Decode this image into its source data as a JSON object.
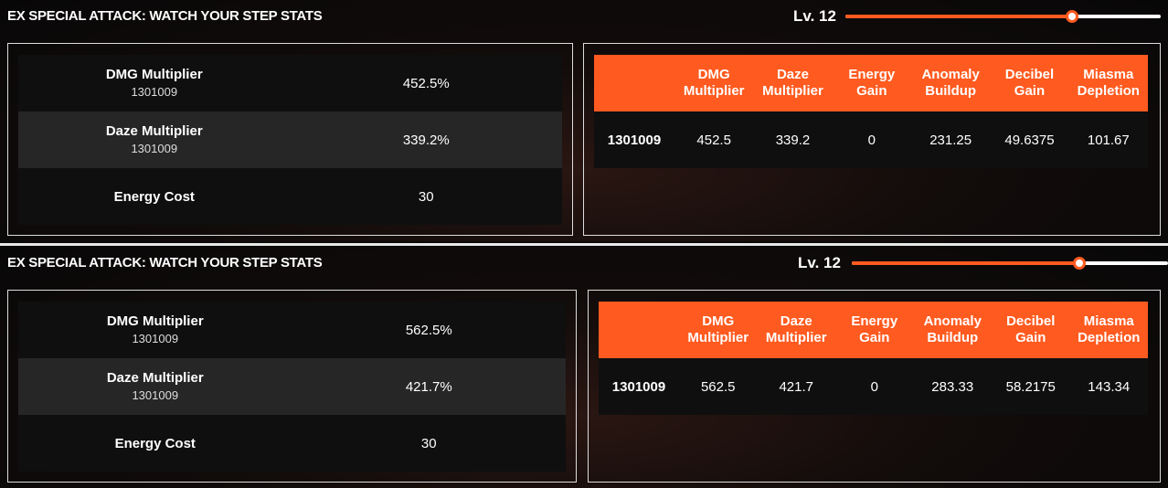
{
  "accent_color": "#ff5a1f",
  "panels": [
    {
      "title": "EX SPECIAL ATTACK: WATCH YOUR STEP STATS",
      "level_label": "Lv. 12",
      "level_slider_fraction": 0.72,
      "stats": [
        {
          "name": "DMG Multiplier",
          "sub": "1301009",
          "value": "452.5%"
        },
        {
          "name": "Daze Multiplier",
          "sub": "1301009",
          "value": "339.2%"
        },
        {
          "name": "Energy Cost",
          "sub": "",
          "value": "30"
        }
      ],
      "table": {
        "headers": [
          "",
          "DMG Multiplier",
          "Daze Multiplier",
          "Energy Gain",
          "Anomaly Buildup",
          "Decibel Gain",
          "Miasma Depletion"
        ],
        "rows": [
          [
            "1301009",
            "452.5",
            "339.2",
            "0",
            "231.25",
            "49.6375",
            "101.67"
          ]
        ]
      }
    },
    {
      "title": "EX SPECIAL ATTACK: WATCH YOUR STEP STATS",
      "level_label": "Lv. 12",
      "level_slider_fraction": 0.72,
      "stats": [
        {
          "name": "DMG Multiplier",
          "sub": "1301009",
          "value": "562.5%"
        },
        {
          "name": "Daze Multiplier",
          "sub": "1301009",
          "value": "421.7%"
        },
        {
          "name": "Energy Cost",
          "sub": "",
          "value": "30"
        }
      ],
      "table": {
        "headers": [
          "",
          "DMG Multiplier",
          "Daze Multiplier",
          "Energy Gain",
          "Anomaly Buildup",
          "Decibel Gain",
          "Miasma Depletion"
        ],
        "rows": [
          [
            "1301009",
            "562.5",
            "421.7",
            "0",
            "283.33",
            "58.2175",
            "143.34"
          ]
        ]
      }
    }
  ]
}
